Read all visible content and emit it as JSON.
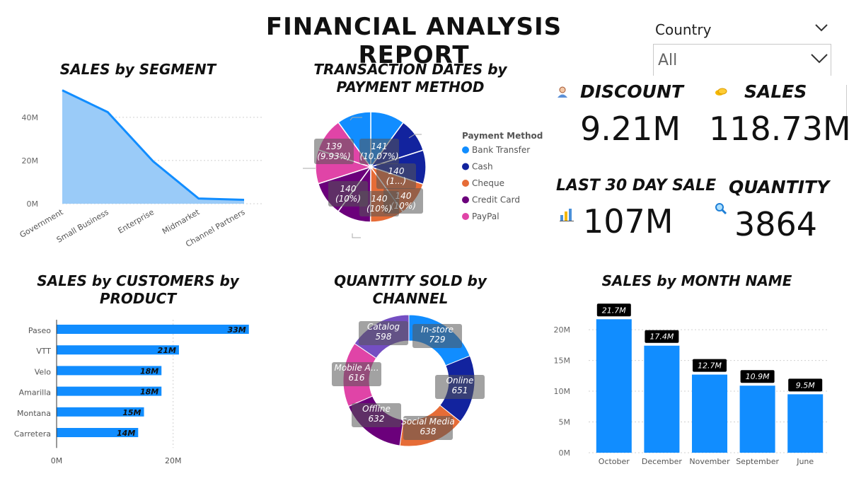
{
  "report": {
    "title": "FINANCIAL ANALYSIS REPORT"
  },
  "slicer": {
    "label": "Country",
    "value": "All"
  },
  "kpis": {
    "discount": {
      "label": "DISCOUNT",
      "value": "9.21M",
      "icon": "person-icon"
    },
    "sales": {
      "label": "SALES",
      "value": "118.73M",
      "icon": "coins-icon"
    },
    "last30": {
      "label": "LAST 30 DAY SALE",
      "value": "107M",
      "icon": "bar-chart-icon"
    },
    "quantity": {
      "label": "QUANTITY",
      "value": "3864",
      "icon": "magnifier-icon"
    }
  },
  "colors": {
    "accent": "#118DFF",
    "area_fill": "#9ACBF8",
    "navy": "#12239E",
    "orange": "#E66C37",
    "purple": "#6B007B",
    "pink": "#E044A7",
    "violet": "#744EC2"
  },
  "chart_data": [
    {
      "id": "sales_by_segment",
      "type": "area",
      "title": "SALES by SEGMENT",
      "categories": [
        "Government",
        "Small Business",
        "Enterprise",
        "Midmarket",
        "Channel Partners"
      ],
      "values": [
        52.5,
        42.4,
        19.6,
        2.4,
        1.8
      ],
      "yticks": [
        "0M",
        "20M",
        "40M"
      ],
      "ylim": [
        0,
        55
      ]
    },
    {
      "id": "transaction_dates_by_payment",
      "type": "pie",
      "title": "TRANSACTION DATES by PAYMENT METHOD",
      "legend_title": "Payment Method",
      "legend": [
        "Bank Transfer",
        "Cash",
        "Cheque",
        "Credit Card",
        "PayPal"
      ],
      "slices": [
        {
          "color": "#118DFF",
          "value": 141,
          "label": "141\n(10.07%)"
        },
        {
          "color": "#12239E",
          "value": 140,
          "label": "140\n(1...)"
        },
        {
          "color": "#12239E",
          "value": 140,
          "label": "140\n(10%)"
        },
        {
          "color": "#E66C37",
          "value": 140,
          "label": "140\n(10%)"
        },
        {
          "color": "#E66C37",
          "value": 140,
          "label": ""
        },
        {
          "color": "#6B007B",
          "value": 140,
          "label": "140\n(10%)"
        },
        {
          "color": "#6B007B",
          "value": 140,
          "label": ""
        },
        {
          "color": "#E044A7",
          "value": 139,
          "label": "139\n(9.93%)"
        },
        {
          "color": "#E044A7",
          "value": 140,
          "label": ""
        },
        {
          "color": "#118DFF",
          "value": 140,
          "label": ""
        }
      ]
    },
    {
      "id": "sales_by_customers_by_product",
      "type": "bar",
      "orientation": "horizontal",
      "title": "SALES by CUSTOMERS by PRODUCT",
      "categories": [
        "Paseo",
        "VTT",
        "Velo",
        "Amarilla",
        "Montana",
        "Carretera"
      ],
      "values": [
        33,
        21,
        18,
        18,
        15,
        14
      ],
      "labels": [
        "33M",
        "21M",
        "18M",
        "18M",
        "15M",
        "14M"
      ],
      "xticks": [
        "0M",
        "20M"
      ],
      "xlim": [
        0,
        34
      ]
    },
    {
      "id": "quantity_sold_by_channel",
      "type": "pie",
      "donut": true,
      "title": "QUANTITY SOLD by CHANNEL",
      "slices": [
        {
          "name": "In-store",
          "value": 729,
          "color": "#118DFF"
        },
        {
          "name": "Online",
          "value": 651,
          "color": "#12239E"
        },
        {
          "name": "Social Media",
          "value": 638,
          "color": "#E66C37"
        },
        {
          "name": "Offline",
          "value": 632,
          "color": "#6B007B"
        },
        {
          "name": "Mobile A...",
          "value": 616,
          "color": "#E044A7"
        },
        {
          "name": "Catalog",
          "value": 598,
          "color": "#744EC2"
        }
      ]
    },
    {
      "id": "sales_by_month_name",
      "type": "bar",
      "title": "SALES by MONTH NAME",
      "categories": [
        "October",
        "December",
        "November",
        "September",
        "June"
      ],
      "values": [
        21.7,
        17.4,
        12.7,
        10.9,
        9.5
      ],
      "labels": [
        "21.7M",
        "17.4M",
        "12.7M",
        "10.9M",
        "9.5M"
      ],
      "yticks": [
        "0M",
        "5M",
        "10M",
        "15M",
        "20M"
      ],
      "ylim": [
        0,
        23
      ]
    }
  ]
}
